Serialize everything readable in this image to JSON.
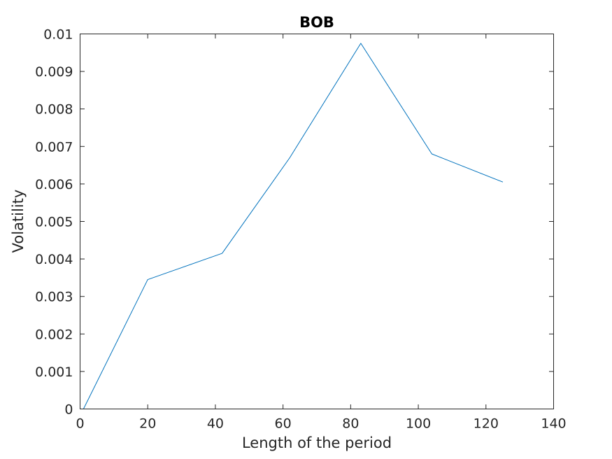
{
  "chart_data": {
    "type": "line",
    "title": "BOB",
    "xlabel": "Length of the period",
    "ylabel": "Volatility",
    "xlim": [
      0,
      140
    ],
    "ylim": [
      0,
      0.01
    ],
    "xticks": [
      "0",
      "20",
      "40",
      "60",
      "80",
      "100",
      "120",
      "140"
    ],
    "yticks": [
      "0",
      "0.001",
      "0.002",
      "0.003",
      "0.004",
      "0.005",
      "0.006",
      "0.007",
      "0.008",
      "0.009",
      "0.01"
    ],
    "grid": false,
    "series": [
      {
        "color": "#0072BD",
        "x": [
          1,
          20,
          42,
          62,
          83,
          104,
          125
        ],
        "y": [
          0,
          0.00345,
          0.00415,
          0.0067,
          0.00975,
          0.0068,
          0.00605
        ]
      }
    ]
  }
}
